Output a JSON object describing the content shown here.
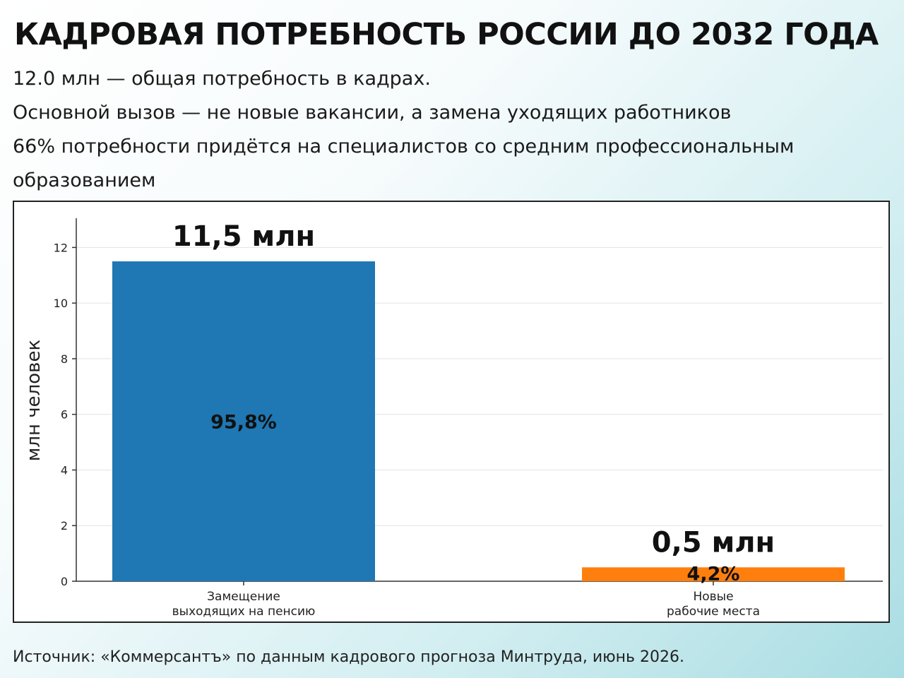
{
  "header": {
    "title": "КАДРОВАЯ ПОТРЕБНОСТЬ РОССИИ ДО 2032 ГОДА",
    "lines": [
      "12.0 млн — общая потребность в кадрах.",
      "Основной вызов — не новые вакансии, а замена уходящих работников",
      "66% потребности придётся на специалистов со средним профессиональным",
      "образованием"
    ]
  },
  "footer": {
    "source": "Источник: «Коммерсантъ» по данным кадрового прогноза Минтруда, июнь 2026."
  },
  "chart_data": {
    "type": "bar",
    "categories": [
      "Замещение\nвыходящих на пенсию",
      "Новые\nрабочие места"
    ],
    "values": [
      11.5,
      0.5
    ],
    "value_labels": [
      "11,5 млн",
      "0,5 млн"
    ],
    "share_labels": [
      "95,8%",
      "4,2%"
    ],
    "colors": [
      "#1f77b4",
      "#ff7f0e"
    ],
    "ylabel": "млн человек",
    "ylim": [
      0,
      13
    ],
    "yticks": [
      0,
      2,
      4,
      6,
      8,
      10,
      12
    ],
    "grid": true
  }
}
